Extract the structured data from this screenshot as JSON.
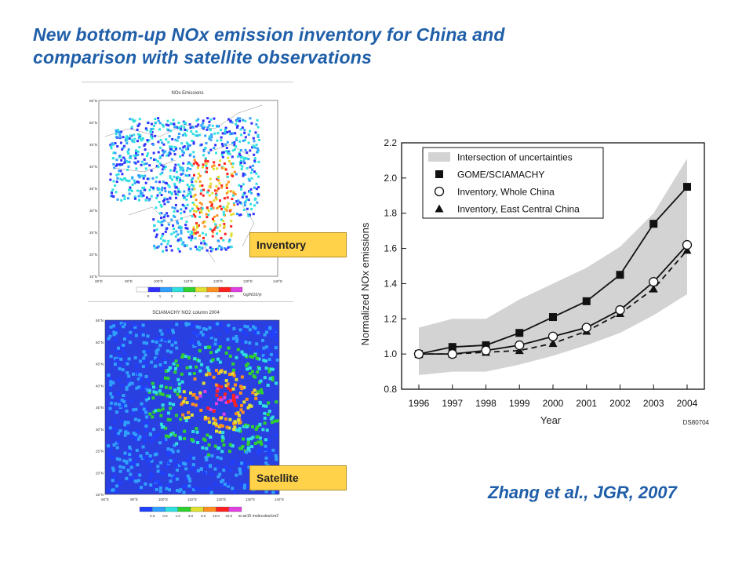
{
  "slide": {
    "title_line1": "New bottom-up NOx emission inventory for China and",
    "title_line2": "comparison with satellite observations",
    "citation": "Zhang et al., JGR, 2007"
  },
  "maps": {
    "inventory": {
      "label": "Inventory",
      "map_title": "NOx Emissions",
      "lat_ticks": [
        "55°N",
        "50°N",
        "45°N",
        "40°N",
        "35°N",
        "30°N",
        "25°N",
        "20°N",
        "15°N"
      ],
      "lon_ticks": [
        "80°E",
        "90°E",
        "100°E",
        "110°E",
        "120°E",
        "130°E",
        "140°E"
      ],
      "colorbar_ticks": [
        "0",
        "1",
        "2",
        "5",
        "7",
        "10",
        "20",
        "100"
      ],
      "colorbar_unit": "Gg/NO2/yr",
      "colorbar_colors": [
        "#ffffff",
        "#3030ff",
        "#30a0ff",
        "#30e0e0",
        "#30d030",
        "#e0e030",
        "#ff9020",
        "#ff2020",
        "#e040e0"
      ]
    },
    "satellite": {
      "label": "Satellite",
      "map_title": "SCIAMACHY NO2 column 2004",
      "lat_ticks": [
        "55°N",
        "50°N",
        "45°N",
        "40°N",
        "35°N",
        "30°N",
        "25°N",
        "20°N",
        "15°N"
      ],
      "lon_ticks": [
        "80°E",
        "90°E",
        "100°E",
        "110°E",
        "120°E",
        "130°E",
        "140°E"
      ],
      "colorbar_ticks": [
        "0.0",
        "0.6",
        "1.0",
        "3.0",
        "5.0",
        "10.0",
        "20.0",
        "30.0"
      ],
      "colorbar_unit": "e15 molecules/cm2",
      "colorbar_colors": [
        "#2040ff",
        "#30a0ff",
        "#30e0e0",
        "#30d030",
        "#e0e030",
        "#ff9020",
        "#ff2020",
        "#e040e0"
      ]
    }
  },
  "chart_data": {
    "type": "line",
    "xlabel": "Year",
    "ylabel": "Normalized NOx emissions",
    "x": [
      1996,
      1997,
      1998,
      1999,
      2000,
      2001,
      2002,
      2003,
      2004
    ],
    "ylim": [
      0.8,
      2.2
    ],
    "yticks": [
      "0.8",
      "1.0",
      "1.2",
      "1.4",
      "1.6",
      "1.8",
      "2.0",
      "2.2"
    ],
    "grid": false,
    "legend_position": "top-left",
    "band": {
      "name": "Intersection of uncertainties",
      "color": "#d3d3d3",
      "lower": [
        0.88,
        0.9,
        0.9,
        0.94,
        0.99,
        1.05,
        1.12,
        1.22,
        1.34
      ],
      "upper": [
        1.15,
        1.2,
        1.2,
        1.31,
        1.4,
        1.49,
        1.61,
        1.8,
        2.11
      ]
    },
    "series": [
      {
        "name": "GOME/SCIAMACHY",
        "marker": "filled-square",
        "line": "solid",
        "values": [
          1.0,
          1.04,
          1.05,
          1.12,
          1.21,
          1.3,
          1.45,
          1.74,
          1.95
        ]
      },
      {
        "name": "Inventory, Whole China",
        "marker": "open-circle",
        "line": "solid",
        "values": [
          1.0,
          1.0,
          1.02,
          1.05,
          1.1,
          1.15,
          1.25,
          1.41,
          1.62
        ]
      },
      {
        "name": "Inventory, East Central China",
        "marker": "filled-triangle",
        "line": "dashed",
        "values": [
          1.0,
          1.0,
          1.01,
          1.02,
          1.06,
          1.13,
          1.23,
          1.37,
          1.59
        ]
      }
    ],
    "annotation": "DS80704"
  }
}
